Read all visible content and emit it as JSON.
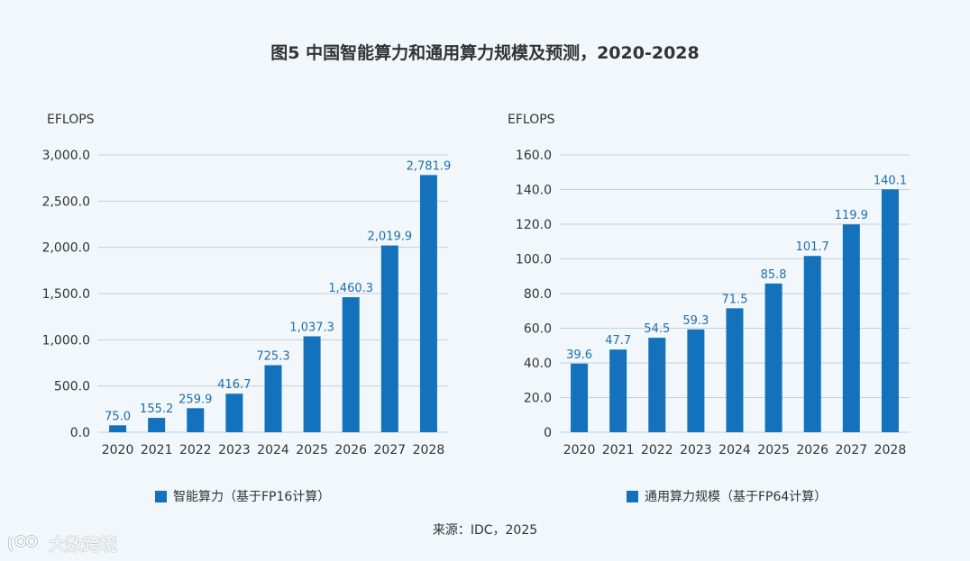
{
  "title": "图5 中国智能算力和通用算力规模及预测，2020-2028",
  "source": "来源：IDC，2025",
  "watermark": "大数跨境",
  "colors": {
    "bar": "#1372bb",
    "label": "#1f6fae",
    "grid": "#c9cfd3",
    "background": "#f1f7fa"
  },
  "chart_data": [
    {
      "type": "bar",
      "title": "",
      "ylabel": "EFLOPS",
      "xlabel": "",
      "categories": [
        "2020",
        "2021",
        "2022",
        "2023",
        "2024",
        "2025",
        "2026",
        "2027",
        "2028"
      ],
      "values": [
        75.0,
        155.2,
        259.9,
        416.7,
        725.3,
        1037.3,
        1460.3,
        2019.9,
        2781.9
      ],
      "value_labels": [
        "75.0",
        "155.2",
        "259.9",
        "416.7",
        "725.3",
        "1,037.3",
        "1,460.3",
        "2,019.9",
        "2,781.9"
      ],
      "ylim": [
        0,
        3000
      ],
      "yticks": [
        0,
        500,
        1000,
        1500,
        2000,
        2500,
        3000
      ],
      "ytick_labels": [
        "0.0",
        "500.0",
        "1,000.0",
        "1,500.0",
        "2,000.0",
        "2,500.0",
        "3,000.0"
      ],
      "legend": "智能算力（基于FP16计算）",
      "legend_position": "bottom",
      "grid": true
    },
    {
      "type": "bar",
      "title": "",
      "ylabel": "EFLOPS",
      "xlabel": "",
      "categories": [
        "2020",
        "2021",
        "2022",
        "2023",
        "2024",
        "2025",
        "2026",
        "2027",
        "2028"
      ],
      "values": [
        39.6,
        47.7,
        54.5,
        59.3,
        71.5,
        85.8,
        101.7,
        119.9,
        140.1
      ],
      "value_labels": [
        "39.6",
        "47.7",
        "54.5",
        "59.3",
        "71.5",
        "85.8",
        "101.7",
        "119.9",
        "140.1"
      ],
      "ylim": [
        0,
        160
      ],
      "yticks": [
        0,
        20,
        40,
        60,
        80,
        100,
        120,
        140,
        160
      ],
      "ytick_labels": [
        "0",
        "20.0",
        "40.0",
        "60.0",
        "80.0",
        "100.0",
        "120.0",
        "140.0",
        "160.0"
      ],
      "legend": "通用算力规模（基于FP64计算）",
      "legend_position": "bottom",
      "grid": true
    }
  ]
}
